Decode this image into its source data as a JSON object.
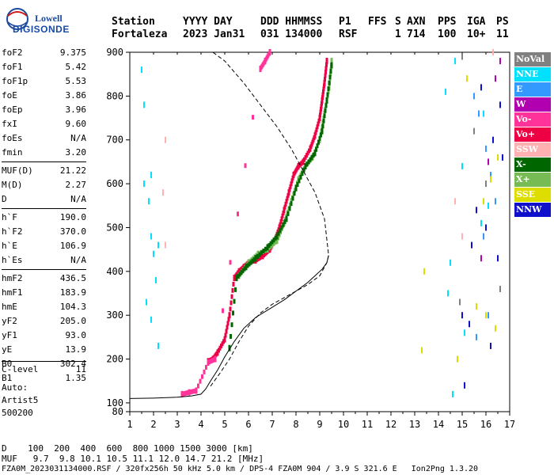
{
  "logo": {
    "line1": "Lowell",
    "line2": "DIGISONDE"
  },
  "header": {
    "row1": [
      "Station",
      "YYYY DAY",
      "DDD HHMMSS",
      "P1",
      "FFS",
      "S",
      "AXN",
      "PPS",
      "IGA",
      "PS"
    ],
    "row2": [
      "Fortaleza",
      "2023 Jan31",
      "031 134000",
      "RSF",
      "",
      "1",
      "714",
      "100",
      "10+",
      "11"
    ]
  },
  "params_groups": [
    [
      [
        "foF2",
        "9.375"
      ],
      [
        "foF1",
        "5.42"
      ],
      [
        "foF1p",
        "5.53"
      ],
      [
        "foE",
        "3.86"
      ],
      [
        "foEp",
        "3.96"
      ],
      [
        "fxI",
        "9.60"
      ],
      [
        "foEs",
        "N/A"
      ],
      [
        "fmin",
        "3.20"
      ]
    ],
    [
      [
        "MUF(D)",
        "21.22"
      ],
      [
        "M(D)",
        "2.27"
      ],
      [
        "D",
        "N/A"
      ]
    ],
    [
      [
        "h`F",
        "190.0"
      ],
      [
        "h`F2",
        "370.0"
      ],
      [
        "h`E",
        "106.9"
      ],
      [
        "h`Es",
        "N/A"
      ]
    ],
    [
      [
        "hmF2",
        "436.5"
      ],
      [
        "hmF1",
        "183.9"
      ],
      [
        "hmE",
        "104.3"
      ],
      [
        "yF2",
        "205.0"
      ],
      [
        "yF1",
        "93.0"
      ],
      [
        "yE",
        "13.9"
      ],
      [
        "B0",
        "302.4"
      ],
      [
        "B1",
        "1.35"
      ]
    ]
  ],
  "clevel": {
    "label": "C-level",
    "value": "11"
  },
  "auto": {
    "line1": "Auto:",
    "line2": "Artist5",
    "line3": "500200"
  },
  "legend": [
    {
      "label": "NoVal",
      "color": "#808080"
    },
    {
      "label": "NNE",
      "color": "#00e0ff"
    },
    {
      "label": "E",
      "color": "#3399ff"
    },
    {
      "label": "W",
      "color": "#b000b0"
    },
    {
      "label": "Vo-",
      "color": "#ff3399"
    },
    {
      "label": "Vo+",
      "color": "#ee0044"
    },
    {
      "label": "SSW",
      "color": "#ffb0b0"
    },
    {
      "label": "X-",
      "color": "#006600"
    },
    {
      "label": "X+",
      "color": "#77bb55"
    },
    {
      "label": "SSE",
      "color": "#dddd00"
    },
    {
      "label": "NNW",
      "color": "#1010cc"
    }
  ],
  "footer": {
    "line1": "D    100  200  400  600  800 1000 1500 3000 [km]",
    "line2": "MUF   9.7  9.8 10.1 10.5 11.1 12.0 14.7 21.2 [MHz]",
    "line3": "FZA0M_2023031134000.RSF / 320fx256h 50 kHz 5.0 km / DPS-4 FZA0M 904 / 3.9 S 321.6 E   Ion2Png 1.3.20"
  },
  "chart_data": {
    "type": "scatter",
    "xlim": [
      1,
      17
    ],
    "ylim": [
      80,
      900
    ],
    "x_ticks": [
      1,
      2,
      3,
      4,
      5,
      6,
      7,
      8,
      9,
      10,
      11,
      12,
      13,
      14,
      15,
      16,
      17
    ],
    "y_ticks": [
      80,
      100,
      200,
      300,
      400,
      500,
      600,
      700,
      800,
      900
    ],
    "series": [
      {
        "name": "Vo+",
        "color": "#ee0044",
        "kind": "trace",
        "x": [
          4.3,
          4.5,
          4.7,
          5.0,
          5.2,
          5.4,
          5.6,
          5.8,
          6.0,
          6.3,
          6.6,
          6.9,
          7.1,
          7.3,
          7.5,
          7.7,
          7.9,
          8.1,
          8.3,
          8.6,
          8.8,
          9.0,
          9.1,
          9.2,
          9.3
        ],
        "y": [
          195,
          200,
          215,
          245,
          300,
          385,
          400,
          410,
          420,
          425,
          435,
          450,
          470,
          500,
          540,
          580,
          620,
          640,
          650,
          680,
          710,
          750,
          790,
          830,
          880
        ]
      },
      {
        "name": "X+",
        "color": "#77bb55",
        "kind": "trace",
        "x": [
          5.6,
          6.0,
          6.4,
          6.8,
          7.2,
          7.5,
          7.8,
          8.1,
          8.4,
          8.7,
          9.0,
          9.2,
          9.4,
          9.5
        ],
        "y": [
          390,
          420,
          440,
          450,
          470,
          510,
          560,
          610,
          640,
          660,
          700,
          760,
          820,
          880
        ]
      },
      {
        "name": "X-",
        "color": "#006600",
        "kind": "trace",
        "x": [
          5.2,
          5.5,
          5.9,
          6.3,
          6.8,
          7.2,
          7.6,
          8.0,
          8.4,
          8.8,
          9.1,
          9.3,
          9.5
        ],
        "y": [
          225,
          385,
          410,
          430,
          455,
          480,
          520,
          590,
          640,
          670,
          720,
          790,
          870
        ]
      },
      {
        "name": "Vo-",
        "color": "#ff3399",
        "kind": "trace",
        "x": [
          3.2,
          3.5,
          3.8,
          4.3,
          4.6,
          6.5,
          6.7,
          6.9
        ],
        "y": [
          120,
          124,
          128,
          192,
          200,
          862,
          880,
          900
        ]
      },
      {
        "name": "NNE",
        "color": "#00e0ff",
        "kind": "scatter",
        "x": [
          1.5,
          1.6,
          1.9,
          2.0,
          2.2,
          1.6,
          1.8,
          1.9,
          1.7,
          1.9,
          2.2,
          2.1,
          14.6,
          14.8,
          15.1,
          14.4,
          14.5,
          15.8,
          16.1,
          16.3,
          15.9,
          14.3,
          14.7,
          15.0
        ],
        "y": [
          860,
          780,
          480,
          440,
          460,
          600,
          560,
          620,
          330,
          290,
          230,
          380,
          120,
          200,
          260,
          350,
          420,
          510,
          550,
          700,
          760,
          810,
          880,
          640
        ]
      },
      {
        "name": "E",
        "color": "#3399ff",
        "kind": "scatter",
        "x": [
          15.5,
          15.7,
          16.0,
          16.2,
          16.4,
          15.9,
          16.1,
          15.6
        ],
        "y": [
          800,
          760,
          680,
          620,
          560,
          480,
          300,
          250
        ]
      },
      {
        "name": "NNW",
        "color": "#1010cc",
        "kind": "scatter",
        "x": [
          15.0,
          15.3,
          15.6,
          16.0,
          16.3,
          16.6,
          15.8,
          16.2,
          16.5,
          15.4,
          16.7,
          15.1
        ],
        "y": [
          300,
          280,
          540,
          500,
          700,
          780,
          820,
          230,
          430,
          460,
          660,
          140
        ]
      },
      {
        "name": "SSE",
        "color": "#dddd00",
        "kind": "scatter",
        "x": [
          13.4,
          13.3,
          15.9,
          16.2,
          16.5,
          15.6,
          16.0,
          16.4,
          14.8,
          15.2
        ],
        "y": [
          400,
          220,
          560,
          610,
          660,
          320,
          300,
          270,
          200,
          840
        ]
      },
      {
        "name": "W",
        "color": "#b000b0",
        "kind": "scatter",
        "x": [
          16.4,
          16.1,
          15.8,
          16.6
        ],
        "y": [
          840,
          650,
          430,
          880
        ]
      },
      {
        "name": "SSW",
        "color": "#ffb0b0",
        "kind": "scatter",
        "x": [
          2.5,
          2.4,
          2.5,
          14.7,
          15.0,
          16.3
        ],
        "y": [
          700,
          580,
          460,
          560,
          480,
          900
        ]
      },
      {
        "name": "NoVal",
        "color": "#808080",
        "kind": "scatter",
        "x": [
          15.0,
          15.5,
          16.0,
          16.6,
          14.9
        ],
        "y": [
          890,
          720,
          600,
          360,
          330
        ]
      },
      {
        "name": "N(h) profile",
        "color": "#000000",
        "kind": "line",
        "x": [
          1.0,
          2.0,
          3.0,
          3.6,
          4.0,
          4.2,
          4.4,
          4.7,
          5.0,
          5.4,
          5.8,
          6.3,
          6.9,
          7.5,
          8.0,
          8.5,
          8.8,
          9.1,
          9.3,
          9.375
        ],
        "y": [
          110,
          111,
          113,
          116,
          120,
          132,
          150,
          175,
          205,
          240,
          270,
          295,
          315,
          335,
          355,
          375,
          390,
          405,
          420,
          436.5
        ]
      },
      {
        "name": "model profile",
        "color": "#000000",
        "kind": "dashed",
        "x": [
          4.4,
          4.8,
          5.2,
          5.6,
          6.0,
          6.5,
          7.0,
          7.5,
          8.0,
          8.5,
          9.0,
          9.3,
          9.375,
          9.2,
          8.8,
          8.3
        ],
        "y": [
          138,
          168,
          200,
          240,
          275,
          305,
          325,
          340,
          355,
          370,
          390,
          420,
          436.5,
          520,
          580,
          630
        ]
      },
      {
        "name": "model upper",
        "color": "#000000",
        "kind": "dashed",
        "x": [
          8.3,
          7.8,
          7.2,
          6.5,
          5.8,
          5.0,
          4.5,
          4.0
        ],
        "y": [
          630,
          680,
          730,
          780,
          830,
          880,
          900,
          900
        ]
      }
    ]
  }
}
